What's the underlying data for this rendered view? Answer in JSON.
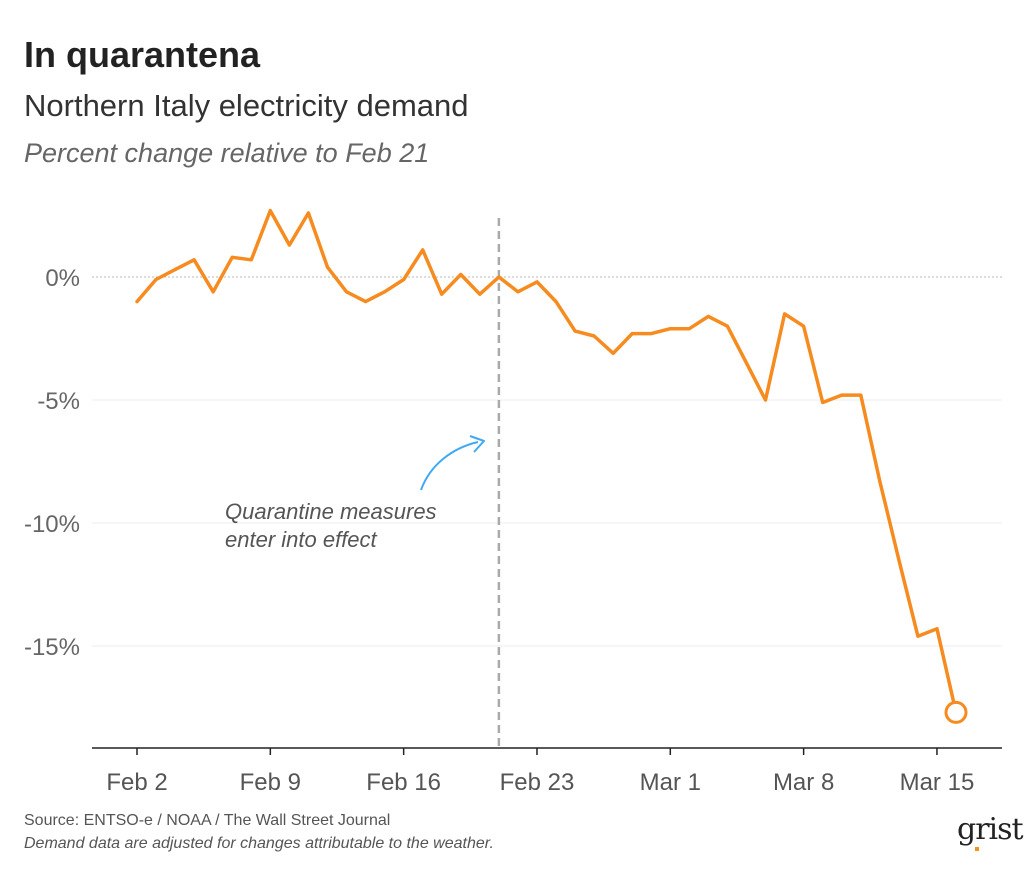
{
  "header": {
    "title": "In quarantena",
    "subtitle": "Northern Italy electricity demand",
    "units": "Percent change relative to Feb 21"
  },
  "footer": {
    "source": "Source: ENTSO-e / NOAA / The Wall Street Journal",
    "note": "Demand data are adjusted for changes attributable to the weather.",
    "logo": "grist"
  },
  "colors": {
    "line": "#f68b1f",
    "annotation_arrow": "#3fa9f5",
    "reference_line": "#aaaaaa"
  },
  "chart_data": {
    "type": "line",
    "title": "In quarantena",
    "subtitle": "Northern Italy electricity demand",
    "ylabel": "Percent change relative to Feb 21",
    "xlabel": "",
    "x_start": "2020-02-02",
    "x_end": "2020-03-16",
    "xlim": [
      "2020-02-02",
      "2020-03-16"
    ],
    "x_ticks": [
      {
        "date": "2020-02-02",
        "label": "Feb 2"
      },
      {
        "date": "2020-02-09",
        "label": "Feb 9"
      },
      {
        "date": "2020-02-16",
        "label": "Feb 16"
      },
      {
        "date": "2020-02-23",
        "label": "Feb 23"
      },
      {
        "date": "2020-03-01",
        "label": "Mar 1"
      },
      {
        "date": "2020-03-08",
        "label": "Mar 8"
      },
      {
        "date": "2020-03-15",
        "label": "Mar 15"
      }
    ],
    "y_ticks": [
      {
        "value": 0,
        "label": "0%"
      },
      {
        "value": -5,
        "label": "-5%"
      },
      {
        "value": -10,
        "label": "-10%"
      },
      {
        "value": -15,
        "label": "-15%"
      }
    ],
    "ylim": [
      -19,
      3
    ],
    "grid": true,
    "reference_line": {
      "date": "2020-02-21",
      "style": "dashed"
    },
    "annotation": {
      "text": [
        "Quarantine measures",
        "enter into effect"
      ],
      "points_to": "2020-02-21"
    },
    "end_marker": "circle",
    "series": [
      {
        "values": [
          {
            "x": "2020-02-02",
            "y": -1.0
          },
          {
            "x": "2020-02-03",
            "y": -0.1
          },
          {
            "x": "2020-02-04",
            "y": 0.3
          },
          {
            "x": "2020-02-05",
            "y": 0.7
          },
          {
            "x": "2020-02-06",
            "y": -0.6
          },
          {
            "x": "2020-02-07",
            "y": 0.8
          },
          {
            "x": "2020-02-08",
            "y": 0.7
          },
          {
            "x": "2020-02-09",
            "y": 2.7
          },
          {
            "x": "2020-02-10",
            "y": 1.3
          },
          {
            "x": "2020-02-11",
            "y": 2.6
          },
          {
            "x": "2020-02-12",
            "y": 0.4
          },
          {
            "x": "2020-02-13",
            "y": -0.6
          },
          {
            "x": "2020-02-14",
            "y": -1.0
          },
          {
            "x": "2020-02-15",
            "y": -0.6
          },
          {
            "x": "2020-02-16",
            "y": -0.1
          },
          {
            "x": "2020-02-17",
            "y": 1.1
          },
          {
            "x": "2020-02-18",
            "y": -0.7
          },
          {
            "x": "2020-02-19",
            "y": 0.1
          },
          {
            "x": "2020-02-20",
            "y": -0.7
          },
          {
            "x": "2020-02-21",
            "y": 0.0
          },
          {
            "x": "2020-02-22",
            "y": -0.6
          },
          {
            "x": "2020-02-23",
            "y": -0.2
          },
          {
            "x": "2020-02-24",
            "y": -1.0
          },
          {
            "x": "2020-02-25",
            "y": -2.2
          },
          {
            "x": "2020-02-26",
            "y": -2.4
          },
          {
            "x": "2020-02-27",
            "y": -3.1
          },
          {
            "x": "2020-02-28",
            "y": -2.3
          },
          {
            "x": "2020-02-29",
            "y": -2.3
          },
          {
            "x": "2020-03-01",
            "y": -2.1
          },
          {
            "x": "2020-03-02",
            "y": -2.1
          },
          {
            "x": "2020-03-03",
            "y": -1.6
          },
          {
            "x": "2020-03-04",
            "y": -2.0
          },
          {
            "x": "2020-03-05",
            "y": -3.5
          },
          {
            "x": "2020-03-06",
            "y": -5.0
          },
          {
            "x": "2020-03-07",
            "y": -1.5
          },
          {
            "x": "2020-03-08",
            "y": -2.0
          },
          {
            "x": "2020-03-09",
            "y": -5.1
          },
          {
            "x": "2020-03-10",
            "y": -4.8
          },
          {
            "x": "2020-03-11",
            "y": -4.8
          },
          {
            "x": "2020-03-12",
            "y": -8.3
          },
          {
            "x": "2020-03-13",
            "y": -11.5
          },
          {
            "x": "2020-03-14",
            "y": -14.6
          },
          {
            "x": "2020-03-15",
            "y": -14.3
          },
          {
            "x": "2020-03-16",
            "y": -17.7
          }
        ]
      }
    ]
  }
}
